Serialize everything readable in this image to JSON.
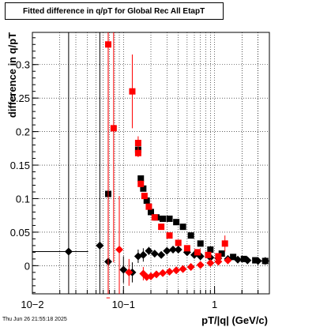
{
  "title": "Fitted difference in q/pT for Global Rec All EtapT",
  "footer": "Thu Jun 26 21:55:18 2025",
  "chart_data": {
    "type": "scatter",
    "title": "Fitted difference in q/pT for Global Rec All EtapT",
    "xlabel": "pT/|q| (GeV/c)",
    "ylabel": "difference in q/pT",
    "xscale": "log",
    "xlim": [
      0.01,
      4
    ],
    "ylim": [
      -0.042,
      0.348
    ],
    "x_ticks": [
      {
        "value": 0.01,
        "label": "10−2"
      },
      {
        "value": 0.1,
        "label": "10−1"
      },
      {
        "value": 1,
        "label": "1"
      }
    ],
    "y_ticks": [
      0,
      0.05,
      0.1,
      0.15,
      0.2,
      0.25,
      0.3
    ],
    "y_tick_labels": [
      "0",
      "0.05",
      "0.1",
      "0.15",
      "0.2",
      "0.25",
      "0.3"
    ],
    "grid": true,
    "colors": {
      "black_series": "#000000",
      "red_series": "#ff0000"
    },
    "series": [
      {
        "color": "#000000",
        "marker": "diamond",
        "points": [
          {
            "x": 0.025,
            "y": 0.021,
            "xerr_lo": 0.016,
            "xerr_hi": 0.016,
            "yerr": 0.4
          },
          {
            "x": 0.055,
            "y": 0.03,
            "xerr_lo": 0.005,
            "xerr_hi": 0.005,
            "yerr": 0.4
          },
          {
            "x": 0.068,
            "y": 0.006,
            "xerr_lo": 0.003,
            "xerr_hi": 0.003,
            "yerr": 0.05
          },
          {
            "x": 0.1,
            "y": -0.006,
            "xerr_lo": 0.005,
            "xerr_hi": 0.005,
            "yerr": 0.02
          },
          {
            "x": 0.125,
            "y": -0.01,
            "xerr_lo": 0.004,
            "xerr_hi": 0.004,
            "yerr": 0.015
          },
          {
            "x": 0.145,
            "y": 0.014,
            "xerr_lo": 0,
            "xerr_hi": 0,
            "yerr": 0.01
          },
          {
            "x": 0.165,
            "y": 0.016,
            "xerr_lo": 0,
            "xerr_hi": 0,
            "yerr": 0.01
          },
          {
            "x": 0.19,
            "y": 0.022,
            "xerr_lo": 0,
            "xerr_hi": 0,
            "yerr": 0.006
          },
          {
            "x": 0.22,
            "y": 0.018,
            "xerr_lo": 0,
            "xerr_hi": 0,
            "yerr": 0.004
          },
          {
            "x": 0.26,
            "y": 0.016,
            "xerr_lo": 0,
            "xerr_hi": 0,
            "yerr": 0.004
          },
          {
            "x": 0.3,
            "y": 0.022,
            "xerr_lo": 0,
            "xerr_hi": 0,
            "yerr": 0.003
          },
          {
            "x": 0.35,
            "y": 0.024,
            "xerr_lo": 0,
            "xerr_hi": 0,
            "yerr": 0.003
          },
          {
            "x": 0.4,
            "y": 0.024,
            "xerr_lo": 0,
            "xerr_hi": 0,
            "yerr": 0.003
          },
          {
            "x": 0.5,
            "y": 0.02,
            "xerr_lo": 0,
            "xerr_hi": 0,
            "yerr": 0.003
          },
          {
            "x": 0.6,
            "y": 0.016,
            "xerr_lo": 0,
            "xerr_hi": 0,
            "yerr": 0.003
          },
          {
            "x": 0.7,
            "y": 0.014,
            "xerr_lo": 0,
            "xerr_hi": 0,
            "yerr": 0.003
          },
          {
            "x": 0.9,
            "y": 0.012,
            "xerr_lo": 0,
            "xerr_hi": 0,
            "yerr": 0.003
          },
          {
            "x": 1.1,
            "y": 0.011,
            "xerr_lo": 0,
            "xerr_hi": 0,
            "yerr": 0.003
          },
          {
            "x": 1.4,
            "y": 0.01,
            "xerr_lo": 0,
            "xerr_hi": 0,
            "yerr": 0.003
          },
          {
            "x": 1.8,
            "y": 0.009,
            "xerr_lo": 0,
            "xerr_hi": 0,
            "yerr": 0.003
          },
          {
            "x": 2.3,
            "y": 0.008,
            "xerr_lo": 0,
            "xerr_hi": 0,
            "yerr": 0.003
          },
          {
            "x": 3.0,
            "y": 0.007,
            "xerr_lo": 0,
            "xerr_hi": 0,
            "yerr": 0.003
          },
          {
            "x": 3.6,
            "y": 0.007,
            "xerr_lo": 0,
            "xerr_hi": 0,
            "yerr": 0.003
          }
        ]
      },
      {
        "color": "#000000",
        "marker": "square",
        "points": [
          {
            "x": 0.068,
            "y": 0.107,
            "xerr_lo": 0.003,
            "xerr_hi": 0.003,
            "yerr": 0.4
          },
          {
            "x": 0.145,
            "y": 0.173,
            "xerr_lo": 0,
            "xerr_hi": 0,
            "yerr": 0.005
          },
          {
            "x": 0.155,
            "y": 0.13,
            "xerr_lo": 0,
            "xerr_hi": 0,
            "yerr": 0.004
          },
          {
            "x": 0.165,
            "y": 0.115,
            "xerr_lo": 0,
            "xerr_hi": 0,
            "yerr": 0.004
          },
          {
            "x": 0.18,
            "y": 0.097,
            "xerr_lo": 0,
            "xerr_hi": 0,
            "yerr": 0.004
          },
          {
            "x": 0.2,
            "y": 0.08,
            "xerr_lo": 0,
            "xerr_hi": 0,
            "yerr": 0.004
          },
          {
            "x": 0.23,
            "y": 0.072,
            "xerr_lo": 0,
            "xerr_hi": 0,
            "yerr": 0.003
          },
          {
            "x": 0.27,
            "y": 0.07,
            "xerr_lo": 0,
            "xerr_hi": 0,
            "yerr": 0.003
          },
          {
            "x": 0.32,
            "y": 0.07,
            "xerr_lo": 0,
            "xerr_hi": 0,
            "yerr": 0.003
          },
          {
            "x": 0.38,
            "y": 0.065,
            "xerr_lo": 0,
            "xerr_hi": 0,
            "yerr": 0.003
          },
          {
            "x": 0.45,
            "y": 0.058,
            "xerr_lo": 0,
            "xerr_hi": 0,
            "yerr": 0.003
          },
          {
            "x": 0.55,
            "y": 0.045,
            "xerr_lo": 0,
            "xerr_hi": 0,
            "yerr": 0.003
          },
          {
            "x": 0.7,
            "y": 0.033,
            "xerr_lo": 0,
            "xerr_hi": 0,
            "yerr": 0.003
          },
          {
            "x": 0.9,
            "y": 0.024,
            "xerr_lo": 0,
            "xerr_hi": 0,
            "yerr": 0.003
          },
          {
            "x": 1.2,
            "y": 0.018,
            "xerr_lo": 0,
            "xerr_hi": 0,
            "yerr": 0.003
          },
          {
            "x": 1.6,
            "y": 0.013,
            "xerr_lo": 0,
            "xerr_hi": 0,
            "yerr": 0.003
          },
          {
            "x": 2.1,
            "y": 0.01,
            "xerr_lo": 0,
            "xerr_hi": 0,
            "yerr": 0.003
          },
          {
            "x": 2.8,
            "y": 0.008,
            "xerr_lo": 0,
            "xerr_hi": 0,
            "yerr": 0.003
          },
          {
            "x": 3.6,
            "y": 0.007,
            "xerr_lo": 0,
            "xerr_hi": 0,
            "yerr": 0.003
          }
        ]
      },
      {
        "color": "#ff0000",
        "marker": "square",
        "points": [
          {
            "x": 0.068,
            "y": 0.33,
            "xerr_lo": 0.003,
            "xerr_hi": 0.003,
            "yerr": 0.4
          },
          {
            "x": 0.078,
            "y": 0.205,
            "xerr_lo": 0,
            "xerr_hi": 0,
            "yerr": 0.2
          },
          {
            "x": 0.125,
            "y": 0.26,
            "xerr_lo": 0,
            "xerr_hi": 0,
            "yerr": 0.055
          },
          {
            "x": 0.145,
            "y": 0.183,
            "xerr_lo": 0,
            "xerr_hi": 0,
            "yerr": 0.01
          },
          {
            "x": 0.145,
            "y": 0.168,
            "xerr_lo": 0,
            "xerr_hi": 0,
            "yerr": 0.006
          },
          {
            "x": 0.155,
            "y": 0.122,
            "xerr_lo": 0,
            "xerr_hi": 0,
            "yerr": 0.005
          },
          {
            "x": 0.17,
            "y": 0.104,
            "xerr_lo": 0,
            "xerr_hi": 0,
            "yerr": 0.004
          },
          {
            "x": 0.19,
            "y": 0.088,
            "xerr_lo": 0,
            "xerr_hi": 0,
            "yerr": 0.004
          },
          {
            "x": 0.22,
            "y": 0.072,
            "xerr_lo": 0,
            "xerr_hi": 0,
            "yerr": 0.003
          },
          {
            "x": 0.26,
            "y": 0.058,
            "xerr_lo": 0,
            "xerr_hi": 0,
            "yerr": 0.003
          },
          {
            "x": 0.32,
            "y": 0.045,
            "xerr_lo": 0,
            "xerr_hi": 0,
            "yerr": 0.003
          },
          {
            "x": 0.4,
            "y": 0.034,
            "xerr_lo": 0,
            "xerr_hi": 0,
            "yerr": 0.003
          },
          {
            "x": 0.5,
            "y": 0.026,
            "xerr_lo": 0,
            "xerr_hi": 0,
            "yerr": 0.003
          },
          {
            "x": 0.65,
            "y": 0.02,
            "xerr_lo": 0,
            "xerr_hi": 0,
            "yerr": 0.003
          },
          {
            "x": 0.85,
            "y": 0.016,
            "xerr_lo": 0,
            "xerr_hi": 0,
            "yerr": 0.003
          },
          {
            "x": 1.1,
            "y": 0.014,
            "xerr_lo": 0,
            "xerr_hi": 0,
            "yerr": 0.003
          },
          {
            "x": 1.3,
            "y": 0.033,
            "xerr_lo": 0,
            "xerr_hi": 0,
            "yerr": 0.012
          }
        ]
      },
      {
        "color": "#ff0000",
        "marker": "diamond",
        "points": [
          {
            "x": 0.068,
            "y": -0.048,
            "xerr_lo": 0.003,
            "xerr_hi": 0.003,
            "yerr": 0.4
          },
          {
            "x": 0.09,
            "y": 0.024,
            "xerr_lo": 0,
            "xerr_hi": 0,
            "yerr": 0.08
          },
          {
            "x": 0.115,
            "y": -0.01,
            "xerr_lo": 0,
            "xerr_hi": 0,
            "yerr": 0.02
          },
          {
            "x": 0.165,
            "y": -0.012,
            "xerr_lo": 0,
            "xerr_hi": 0,
            "yerr": 0.01
          },
          {
            "x": 0.18,
            "y": -0.017,
            "xerr_lo": 0,
            "xerr_hi": 0,
            "yerr": 0.005
          },
          {
            "x": 0.2,
            "y": -0.016,
            "xerr_lo": 0,
            "xerr_hi": 0,
            "yerr": 0.004
          },
          {
            "x": 0.23,
            "y": -0.013,
            "xerr_lo": 0,
            "xerr_hi": 0,
            "yerr": 0.004
          },
          {
            "x": 0.27,
            "y": -0.011,
            "xerr_lo": 0,
            "xerr_hi": 0,
            "yerr": 0.003
          },
          {
            "x": 0.32,
            "y": -0.009,
            "xerr_lo": 0,
            "xerr_hi": 0,
            "yerr": 0.003
          },
          {
            "x": 0.38,
            "y": -0.007,
            "xerr_lo": 0,
            "xerr_hi": 0,
            "yerr": 0.003
          },
          {
            "x": 0.45,
            "y": -0.005,
            "xerr_lo": 0,
            "xerr_hi": 0,
            "yerr": 0.003
          },
          {
            "x": 0.55,
            "y": -0.002,
            "xerr_lo": 0,
            "xerr_hi": 0,
            "yerr": 0.003
          },
          {
            "x": 0.7,
            "y": 0.001,
            "xerr_lo": 0,
            "xerr_hi": 0,
            "yerr": 0.003
          },
          {
            "x": 0.9,
            "y": 0.004,
            "xerr_lo": 0,
            "xerr_hi": 0,
            "yerr": 0.003
          },
          {
            "x": 1.1,
            "y": 0.006,
            "xerr_lo": 0,
            "xerr_hi": 0,
            "yerr": 0.003
          },
          {
            "x": 1.4,
            "y": 0.008,
            "xerr_lo": 0,
            "xerr_hi": 0,
            "yerr": 0.003
          }
        ]
      }
    ]
  }
}
